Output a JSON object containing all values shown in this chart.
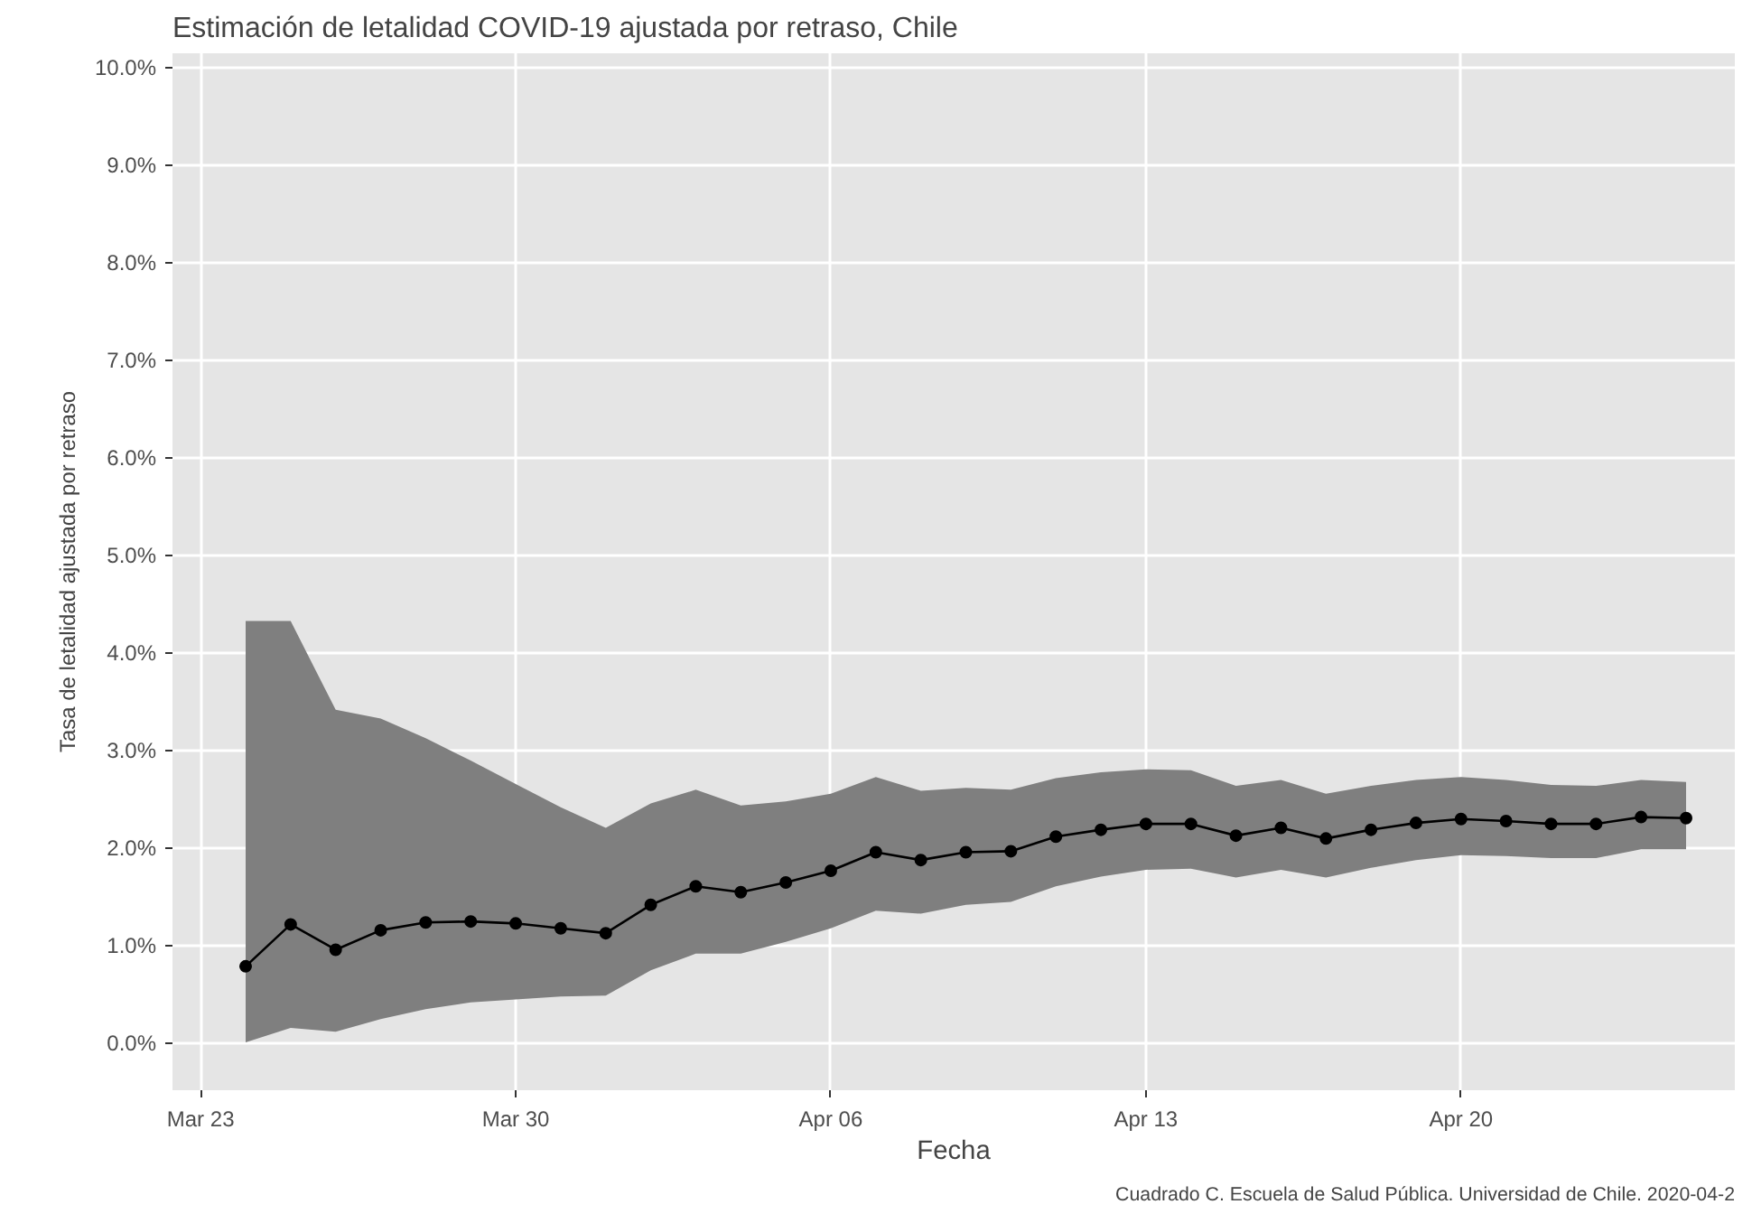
{
  "chart_data": {
    "type": "line",
    "title": "Estimación de letalidad COVID-19 ajustada por retraso, Chile",
    "xlabel": "Fecha",
    "ylabel": "Tasa de letalidad ajustada por retraso",
    "annotations": [
      "Cuadrado C. Escuela de Salud Pública. Universidad de Chile. 2020-04-2"
    ],
    "x": [
      "2020-03-24",
      "2020-03-25",
      "2020-03-26",
      "2020-03-27",
      "2020-03-28",
      "2020-03-29",
      "2020-03-30",
      "2020-03-31",
      "2020-04-01",
      "2020-04-02",
      "2020-04-03",
      "2020-04-04",
      "2020-04-05",
      "2020-04-06",
      "2020-04-07",
      "2020-04-08",
      "2020-04-09",
      "2020-04-10",
      "2020-04-11",
      "2020-04-12",
      "2020-04-13",
      "2020-04-14",
      "2020-04-15",
      "2020-04-16",
      "2020-04-17",
      "2020-04-18",
      "2020-04-19",
      "2020-04-20",
      "2020-04-21",
      "2020-04-22",
      "2020-04-23",
      "2020-04-24",
      "2020-04-25"
    ],
    "series": [
      {
        "color": "#000000",
        "values": [
          0.79,
          1.22,
          0.96,
          1.16,
          1.24,
          1.25,
          1.23,
          1.18,
          1.13,
          1.42,
          1.61,
          1.55,
          1.65,
          1.77,
          1.96,
          1.88,
          1.96,
          1.97,
          2.12,
          2.19,
          2.25,
          2.25,
          2.13,
          2.21,
          2.1,
          2.19,
          2.26,
          2.3,
          2.28,
          2.25,
          2.25,
          2.32,
          2.31
        ],
        "upper": [
          4.33,
          4.33,
          3.42,
          3.33,
          3.13,
          2.9,
          2.66,
          2.42,
          2.21,
          2.46,
          2.6,
          2.44,
          2.48,
          2.56,
          2.73,
          2.59,
          2.62,
          2.6,
          2.72,
          2.78,
          2.81,
          2.8,
          2.64,
          2.7,
          2.56,
          2.64,
          2.7,
          2.73,
          2.7,
          2.65,
          2.64,
          2.7,
          2.68
        ],
        "lower": [
          0.01,
          0.16,
          0.12,
          0.25,
          0.35,
          0.42,
          0.45,
          0.48,
          0.49,
          0.75,
          0.92,
          0.92,
          1.04,
          1.18,
          1.36,
          1.33,
          1.42,
          1.45,
          1.61,
          1.71,
          1.78,
          1.79,
          1.7,
          1.78,
          1.7,
          1.8,
          1.88,
          1.93,
          1.92,
          1.9,
          1.9,
          1.99,
          1.99
        ]
      }
    ],
    "marker": "circle",
    "line_style": "solid",
    "grid": true,
    "xlim": [
      "2020-03-22T09:00",
      "2020-04-26T02:00"
    ],
    "xticks": [
      {
        "value": "2020-03-23",
        "label": "Mar 23"
      },
      {
        "value": "2020-03-30",
        "label": "Mar 30"
      },
      {
        "value": "2020-04-06",
        "label": "Apr 06"
      },
      {
        "value": "2020-04-13",
        "label": "Apr 13"
      },
      {
        "value": "2020-04-20",
        "label": "Apr 20"
      }
    ],
    "ylim": [
      -0.48,
      10.15
    ],
    "yticks": [
      {
        "value": 0,
        "label": "0.0%"
      },
      {
        "value": 1,
        "label": "1.0%"
      },
      {
        "value": 2,
        "label": "2.0%"
      },
      {
        "value": 3,
        "label": "3.0%"
      },
      {
        "value": 4,
        "label": "4.0%"
      },
      {
        "value": 5,
        "label": "5.0%"
      },
      {
        "value": 6,
        "label": "6.0%"
      },
      {
        "value": 7,
        "label": "7.0%"
      },
      {
        "value": 8,
        "label": "8.0%"
      },
      {
        "value": 9,
        "label": "9.0%"
      },
      {
        "value": 10,
        "label": "10.0%"
      }
    ]
  }
}
